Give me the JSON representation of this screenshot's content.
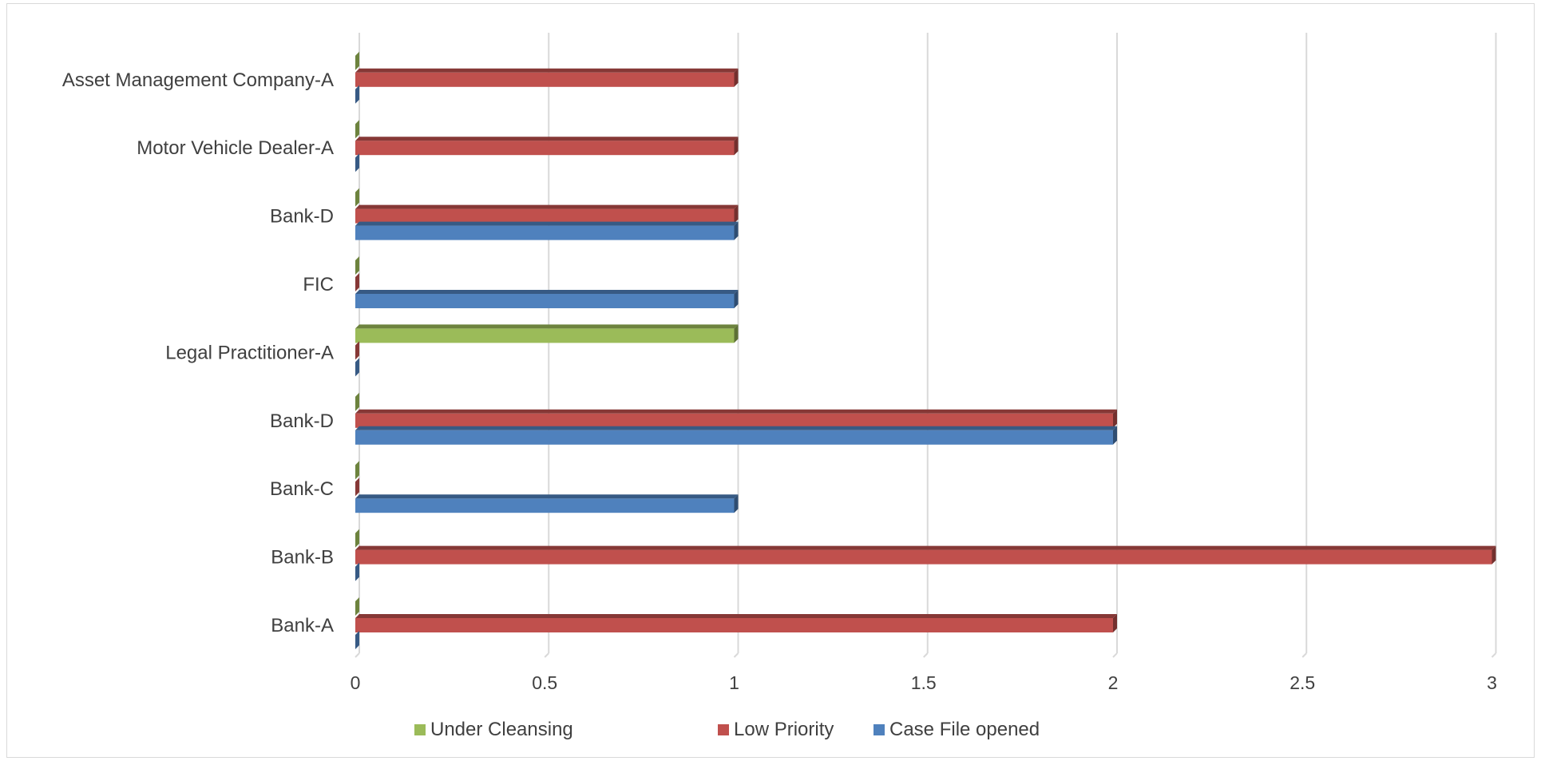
{
  "chart_data": {
    "type": "bar",
    "orientation": "horizontal",
    "style": "3d",
    "categories": [
      "Bank-A",
      "Bank-B",
      "Bank-C",
      "Bank-D",
      "Legal Practitioner-A",
      "FIC",
      "Bank-D",
      "Motor Vehicle Dealer-A",
      "Asset Management Company-A"
    ],
    "series": [
      {
        "name": "Case File opened",
        "color": "#4f81bd",
        "values": [
          0,
          0,
          1,
          2,
          0,
          1,
          1,
          0,
          0
        ]
      },
      {
        "name": "Low Priority",
        "color": "#c0504d",
        "values": [
          2,
          3,
          0,
          2,
          0,
          0,
          1,
          1,
          1
        ]
      },
      {
        "name": "Under Cleansing",
        "color": "#9bbb59",
        "values": [
          0,
          0,
          0,
          0,
          1,
          0,
          0,
          0,
          0
        ]
      }
    ],
    "x_ticks": [
      "0",
      "0.5",
      "1",
      "1.5",
      "2",
      "2.5",
      "3"
    ],
    "xlim": [
      0,
      3
    ],
    "grid": true,
    "legend_position": "bottom",
    "legend_order": [
      "Under Cleansing",
      "Low Priority",
      "Case File opened"
    ],
    "title": "",
    "xlabel": "",
    "ylabel": ""
  }
}
